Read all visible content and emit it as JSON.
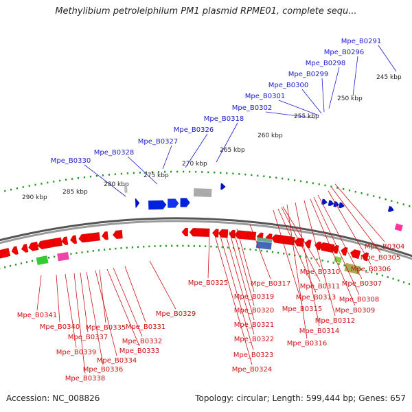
{
  "title": "Methylibium petroleiphilum PM1 plasmid RPME01, complete sequ...",
  "footer": {
    "accession_label": "Accession:",
    "accession": "NC_008826",
    "topology_label": "Topology:",
    "topology": "circular",
    "length_label": "Length:",
    "length": "599,444 bp",
    "genes_label": "Genes:",
    "genes": "657"
  },
  "colors": {
    "forward_label": "#1a1acc",
    "reverse_label": "#cc1111",
    "forward_gene": "#0000ee",
    "reverse_gene": "#ee0000",
    "backbone": "#777777",
    "tick": "#229922"
  },
  "scale_labels": [
    "245 kbp",
    "250 kbp",
    "255 kbp",
    "260 kbp",
    "265 kbp",
    "270 kbp",
    "275 kbp",
    "280 kbp",
    "285 kbp",
    "290 kbp"
  ],
  "forward_labels": [
    "Mpe_B0291",
    "Mpe_B0296",
    "Mpe_B0298",
    "Mpe_B0299",
    "Mpe_B0300",
    "Mpe_B0301",
    "Mpe_B0302",
    "Mpe_B0318",
    "Mpe_B0326",
    "Mpe_B0327",
    "Mpe_B0328",
    "Mpe_B0330"
  ],
  "reverse_labels": [
    "Mpe_B0304",
    "Mpe_B0305",
    "Mpe_B0306",
    "Mpe_B0307",
    "Mpe_B0308",
    "Mpe_B0309",
    "Mpe_B0310",
    "Mpe_B0311",
    "Mpe_B0312",
    "Mpe_B0313",
    "Mpe_B0314",
    "Mpe_B0315",
    "Mpe_B0316",
    "Mpe_B0317",
    "Mpe_B0319",
    "Mpe_B0320",
    "Mpe_B0321",
    "Mpe_B0322",
    "Mpe_B0323",
    "Mpe_B0324",
    "Mpe_B0325",
    "Mpe_B0329",
    "Mpe_B0331",
    "Mpe_B0332",
    "Mpe_B0333",
    "Mpe_B0334",
    "Mpe_B0335",
    "Mpe_B0336",
    "Mpe_B0337",
    "Mpe_B0338",
    "Mpe_B0339",
    "Mpe_B0340",
    "Mpe_B0341"
  ]
}
